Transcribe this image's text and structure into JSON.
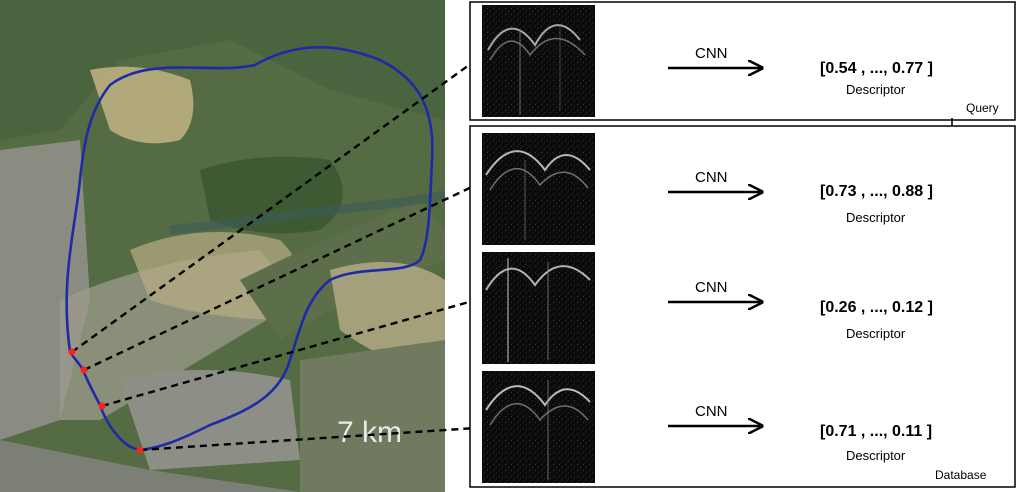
{
  "map": {
    "scale_label": "7 km",
    "route_color": "#1f2aa8",
    "marker_color": "#ff2020"
  },
  "query": {
    "arrow_label": "CNN",
    "descriptor_value": "[0.54 , ..., 0.77 ]",
    "descriptor_label": "Descriptor",
    "box_label": "Query"
  },
  "database": {
    "box_label": "Database",
    "rows": [
      {
        "arrow_label": "CNN",
        "descriptor_value": "[0.73 , ..., 0.88 ]",
        "descriptor_label": "Descriptor"
      },
      {
        "arrow_label": "CNN",
        "descriptor_value": "[0.26 , ..., 0.12 ]",
        "descriptor_label": "Descriptor"
      },
      {
        "arrow_label": "CNN",
        "descriptor_value": "[0.71 , ..., 0.11 ]",
        "descriptor_label": "Descriptor"
      }
    ]
  }
}
